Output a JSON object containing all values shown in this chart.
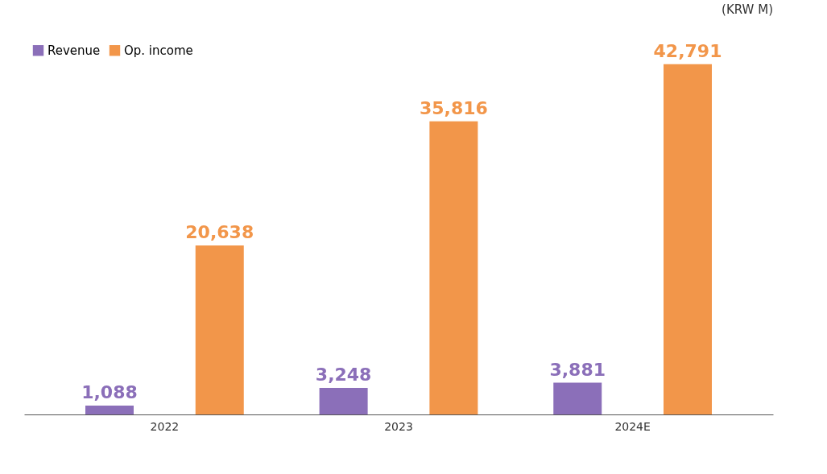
{
  "chart_data": {
    "type": "bar",
    "categories": [
      "2022",
      "2023",
      "2024E"
    ],
    "series": [
      {
        "name": "Revenue",
        "color": "#8b6fb9",
        "values": [
          1088,
          3248,
          3881
        ],
        "value_labels": [
          "1,088",
          "3,248",
          "3,881"
        ]
      },
      {
        "name": "Op. income",
        "color": "#f2964a",
        "values": [
          20638,
          35816,
          42791
        ],
        "value_labels": [
          "20,638",
          "35,816",
          "42,791"
        ]
      }
    ],
    "legend": "top left",
    "grid": false,
    "annotations": [
      "(KRW M)"
    ]
  }
}
